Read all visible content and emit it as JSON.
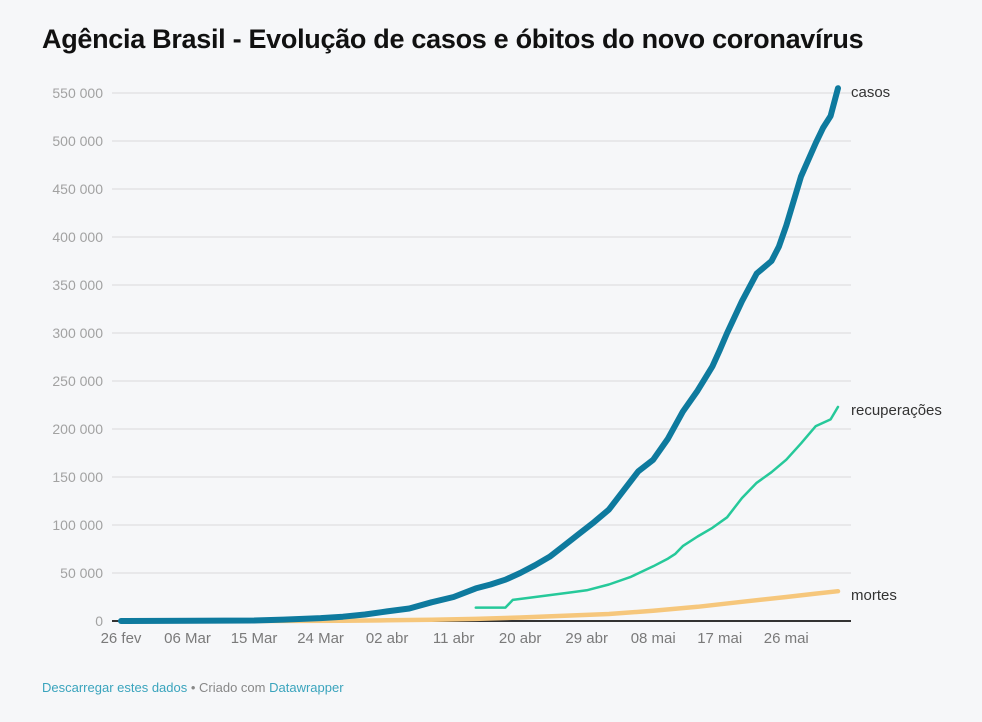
{
  "title": "Agência Brasil - Evolução de casos e óbitos do novo coronavírus",
  "footer": {
    "download_link": "Descarregar estes dados",
    "separator": " • Criado com ",
    "credit_link": "Datawrapper"
  },
  "chart_data": {
    "type": "line",
    "title": "Agência Brasil - Evolução de casos e óbitos do novo coronavírus",
    "xlabel": "",
    "ylabel": "",
    "x_unit": "days since 26 fev",
    "xlim": [
      0,
      97
    ],
    "ylim": [
      0,
      550000
    ],
    "grid": true,
    "legend": "direct-labels-right",
    "y_ticks": [
      0,
      50000,
      100000,
      150000,
      200000,
      250000,
      300000,
      350000,
      400000,
      450000,
      500000,
      550000
    ],
    "y_tick_labels": [
      "0",
      "50 000",
      "100 000",
      "150 000",
      "200 000",
      "250 000",
      "300 000",
      "350 000",
      "400 000",
      "450 000",
      "500 000",
      "550 000"
    ],
    "x_ticks": [
      0,
      9,
      18,
      27,
      36,
      45,
      54,
      63,
      72,
      81,
      90
    ],
    "x_tick_labels": [
      "26 fev",
      "06 Mar",
      "15 Mar",
      "24 Mar",
      "02 abr",
      "11 abr",
      "20 abr",
      "29 abr",
      "08 mai",
      "17 mai",
      "26 mai"
    ],
    "colors": {
      "casos": "#0e7a9e",
      "recuperacoes": "#26c99a",
      "mortes": "#f6c77c"
    },
    "series": [
      {
        "name": "casos",
        "x": [
          0,
          10,
          18,
          22,
          27,
          30,
          33,
          36,
          39,
          42,
          45,
          48,
          50,
          52,
          54,
          56,
          58,
          60,
          62,
          64,
          66,
          68,
          70,
          72,
          74,
          76,
          78,
          80,
          81,
          82,
          84,
          86,
          88,
          89,
          90,
          92,
          94,
          95,
          96,
          97
        ],
        "y": [
          1,
          200,
          500,
          1500,
          3000,
          4500,
          6800,
          10000,
          13000,
          19500,
          25000,
          34000,
          38000,
          43000,
          50000,
          58000,
          67000,
          79000,
          91000,
          103000,
          116000,
          136000,
          156000,
          168000,
          190000,
          218000,
          240000,
          265000,
          282000,
          300000,
          333000,
          362000,
          375000,
          390000,
          412000,
          463000,
          498000,
          514000,
          526000,
          555000
        ]
      },
      {
        "name": "recuperações",
        "x": [
          48,
          52,
          53,
          55,
          58,
          61,
          63,
          66,
          69,
          72,
          74,
          75,
          76,
          78,
          80,
          82,
          84,
          86,
          88,
          90,
          92,
          94,
          96,
          97
        ],
        "y": [
          14000,
          14000,
          22000,
          24000,
          27000,
          30000,
          32000,
          38000,
          46000,
          57000,
          65000,
          70000,
          78000,
          88000,
          97000,
          108000,
          128000,
          144000,
          155000,
          168000,
          185000,
          203000,
          210000,
          223000
        ]
      },
      {
        "name": "mortes",
        "x": [
          18,
          24,
          30,
          36,
          42,
          48,
          54,
          60,
          66,
          72,
          78,
          84,
          90,
          94,
          97
        ],
        "y": [
          0,
          100,
          300,
          700,
          1200,
          2200,
          3600,
          5400,
          7300,
          10600,
          14800,
          20000,
          25000,
          28500,
          31000
        ]
      }
    ]
  }
}
